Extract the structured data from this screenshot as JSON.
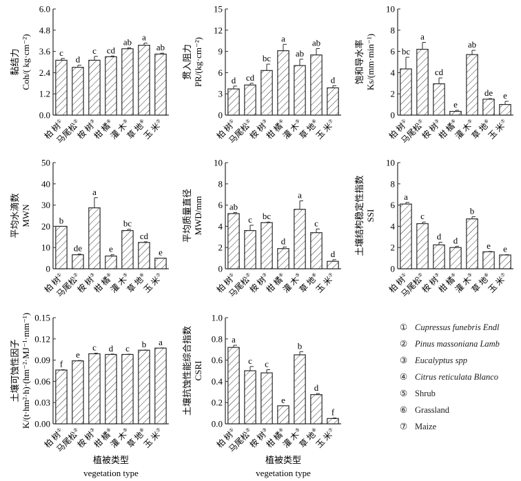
{
  "categories": [
    "柏 树",
    "马尾松",
    "桉 树",
    "柑 橘",
    "灌 木",
    "草 地",
    "玉 米"
  ],
  "category_markers": [
    "①",
    "②",
    "③",
    "④",
    "⑤",
    "⑥",
    "⑦"
  ],
  "xaxis_title_cn": "植被类型",
  "xaxis_title_en": "vegetation type",
  "legend": [
    {
      "marker": "①",
      "label": "Cupressus funebris Endl",
      "italic": true
    },
    {
      "marker": "②",
      "label": "Pinus massoniana Lamb",
      "italic": true
    },
    {
      "marker": "③",
      "label": "Eucalyptus spp",
      "italic": true
    },
    {
      "marker": "④",
      "label": "Citrus reticulata Blanco",
      "italic": true
    },
    {
      "marker": "⑤",
      "label": "Shrub",
      "italic": false
    },
    {
      "marker": "⑥",
      "label": "Grassland",
      "italic": false
    },
    {
      "marker": "⑦",
      "label": "Maize",
      "italic": false
    }
  ],
  "colors": {
    "bar_fill": "#ffffff",
    "bar_stroke": "#2a2a2a",
    "hatch": "#333333",
    "axis": "#2a2a2a"
  },
  "chart_data": [
    {
      "type": "bar",
      "id": "coh",
      "ylabel_cn": "黏结力",
      "ylabel_en": "Coh/( kg·cm⁻²)",
      "ylim": [
        0,
        6.0
      ],
      "yticks": [
        "0.0",
        "1.2",
        "2.4",
        "3.6",
        "4.8",
        "6.0"
      ],
      "ytick_values": [
        0,
        1.2,
        2.4,
        3.6,
        4.8,
        6.0
      ],
      "values": [
        3.1,
        2.7,
        3.1,
        3.3,
        3.75,
        3.95,
        3.45
      ],
      "errors": [
        0.1,
        0.12,
        0.22,
        0.04,
        0.05,
        0.12,
        0.05
      ],
      "labels": [
        "c",
        "d",
        "c",
        "cd",
        "ab",
        "a",
        "ab"
      ],
      "show_xtitle": false
    },
    {
      "type": "bar",
      "id": "pr",
      "ylabel_cn": "贯入阻力",
      "ylabel_en": "PR/(kg·cm⁻²)",
      "ylim": [
        0,
        15
      ],
      "yticks": [
        "0",
        "3",
        "6",
        "9",
        "12",
        "15"
      ],
      "ytick_values": [
        0,
        3,
        6,
        9,
        12,
        15
      ],
      "values": [
        3.7,
        4.25,
        6.3,
        9.1,
        7.0,
        8.5,
        3.85
      ],
      "errors": [
        0.4,
        0.25,
        0.9,
        0.9,
        0.9,
        0.9,
        0.3
      ],
      "labels": [
        "d",
        "cd",
        "bc",
        "a",
        "ab",
        "ab",
        "d"
      ],
      "show_xtitle": false
    },
    {
      "type": "bar",
      "id": "ks",
      "ylabel_cn": "饱和导水率",
      "ylabel_en": "Ks/(mm·min⁻¹)",
      "ylim": [
        0,
        10
      ],
      "yticks": [
        "0",
        "2",
        "4",
        "6",
        "8",
        "10"
      ],
      "ytick_values": [
        0,
        2,
        4,
        6,
        8,
        10
      ],
      "values": [
        4.35,
        6.2,
        2.95,
        0.35,
        5.7,
        1.5,
        1.0
      ],
      "errors": [
        1.1,
        0.65,
        0.55,
        0.1,
        0.4,
        0.05,
        0.3
      ],
      "labels": [
        "bc",
        "a",
        "cd",
        "e",
        "ab",
        "de",
        "e"
      ],
      "show_xtitle": false
    },
    {
      "type": "bar",
      "id": "mwn",
      "ylabel_cn": "平均水滴数",
      "ylabel_en": "MWN",
      "ylim": [
        0,
        50
      ],
      "yticks": [
        "0",
        "10",
        "20",
        "30",
        "40",
        "50"
      ],
      "ytick_values": [
        0,
        10,
        20,
        30,
        40,
        50
      ],
      "values": [
        20,
        6.6,
        28.7,
        6.0,
        18.0,
        12.4,
        5.0
      ],
      "errors": [
        0,
        0.3,
        4.8,
        0.6,
        0.6,
        0.3,
        0
      ],
      "labels": [
        "b",
        "de",
        "a",
        "e",
        "bc",
        "cd",
        "e"
      ],
      "show_xtitle": false
    },
    {
      "type": "bar",
      "id": "mwd",
      "ylabel_cn": "平均质量直径",
      "ylabel_en": "MWD/mm",
      "ylim": [
        0,
        10
      ],
      "yticks": [
        "0",
        "2",
        "4",
        "6",
        "8",
        "10"
      ],
      "ytick_values": [
        0,
        2,
        4,
        6,
        8,
        10
      ],
      "values": [
        5.2,
        3.6,
        4.35,
        1.9,
        5.6,
        3.4,
        0.7
      ],
      "errors": [
        0.1,
        0.5,
        0.05,
        0.15,
        0.8,
        0.35,
        0.15
      ],
      "labels": [
        "ab",
        "c",
        "bc",
        "d",
        "a",
        "c",
        "d"
      ],
      "show_xtitle": false
    },
    {
      "type": "bar",
      "id": "ssi",
      "ylabel_cn": "土壤结构稳定性指数",
      "ylabel_en": "SSI",
      "ylim": [
        0,
        10
      ],
      "yticks": [
        "0",
        "2",
        "4",
        "6",
        "8",
        "10"
      ],
      "ytick_values": [
        0,
        2,
        4,
        6,
        8,
        10
      ],
      "values": [
        6.1,
        4.25,
        2.25,
        2.0,
        4.7,
        1.6,
        1.3
      ],
      "errors": [
        0.15,
        0.15,
        0.25,
        0.12,
        0.2,
        0.03,
        0.03
      ],
      "labels": [
        "a",
        "c",
        "d",
        "d",
        "b",
        "e",
        "e"
      ],
      "show_xtitle": false
    },
    {
      "type": "bar",
      "id": "k",
      "ylabel_cn": "土壤可蚀性因子",
      "ylabel_en": "K/(t·hm²·h)·(hm⁻²·MJ⁻¹·mm⁻¹)",
      "ylim": [
        0,
        0.15
      ],
      "yticks": [
        "0.00",
        "0.03",
        "0.06",
        "0.09",
        "0.12",
        "0.15"
      ],
      "ytick_values": [
        0,
        0.03,
        0.06,
        0.09,
        0.12,
        0.15
      ],
      "values": [
        0.076,
        0.089,
        0.099,
        0.098,
        0.098,
        0.104,
        0.107
      ],
      "errors": [
        0.0005,
        0.0005,
        0.0008,
        0.0006,
        0.0003,
        0.0003,
        0.0003
      ],
      "labels": [
        "f",
        "e",
        "c",
        "d",
        "c",
        "b",
        "a"
      ],
      "show_xtitle": true
    },
    {
      "type": "bar",
      "id": "csri",
      "ylabel_cn": "土壤抗蚀性能综合指数",
      "ylabel_en": "CSRI",
      "ylim": [
        0,
        1.0
      ],
      "yticks": [
        "0.0",
        "0.2",
        "0.4",
        "0.6",
        "0.8",
        "1.0"
      ],
      "ytick_values": [
        0,
        0.2,
        0.4,
        0.6,
        0.8,
        1.0
      ],
      "values": [
        0.72,
        0.5,
        0.48,
        0.17,
        0.65,
        0.275,
        0.05
      ],
      "errors": [
        0.02,
        0.04,
        0.03,
        0.0,
        0.03,
        0.01,
        0.005
      ],
      "labels": [
        "a",
        "c",
        "c",
        "e",
        "b",
        "d",
        "f"
      ],
      "show_xtitle": true
    }
  ]
}
